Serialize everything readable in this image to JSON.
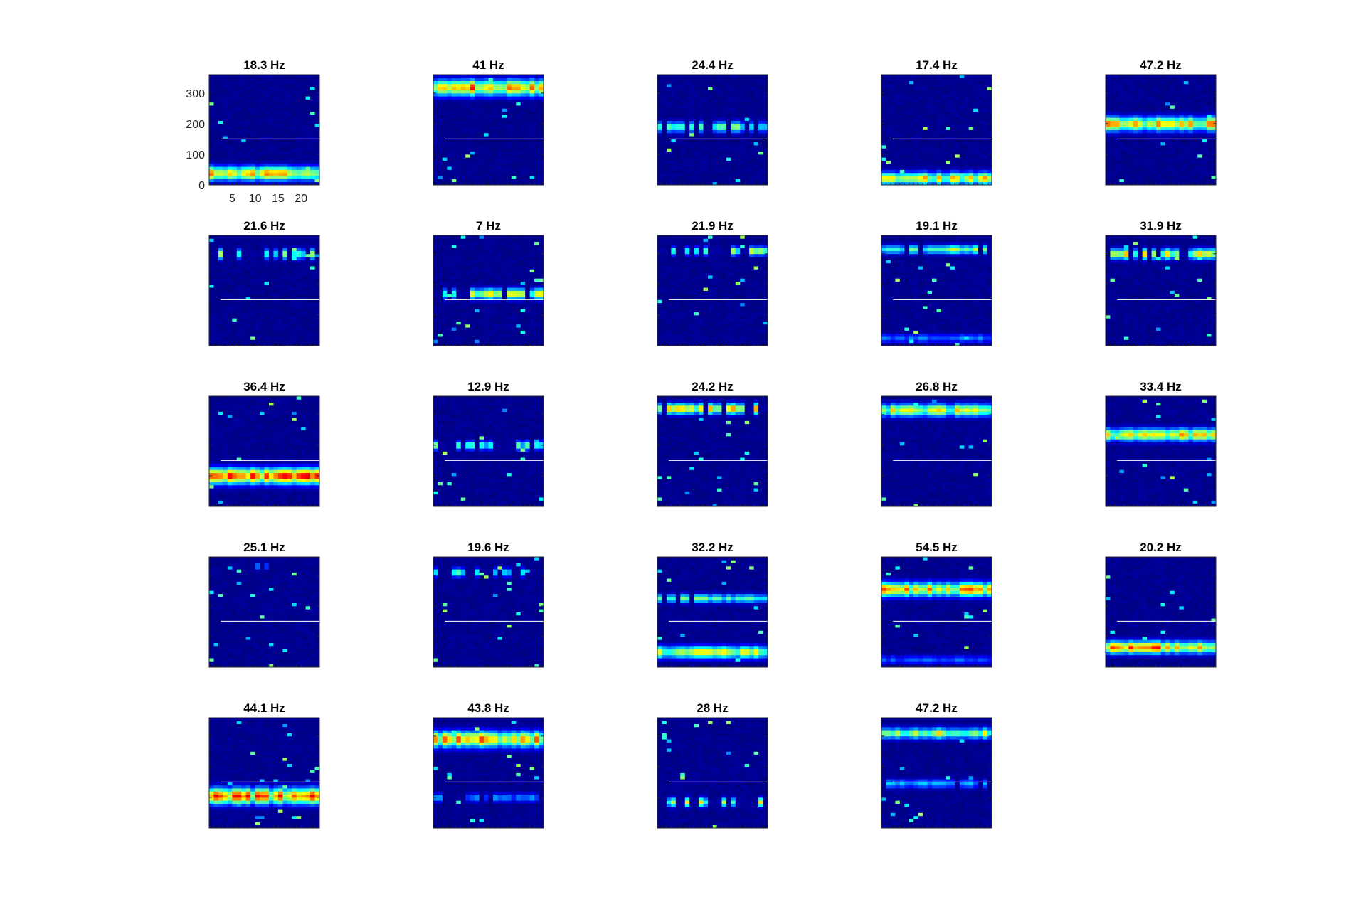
{
  "chart_data": {
    "type": "heatmap",
    "colormap": "jet",
    "layout": {
      "rows": 5,
      "cols": 5
    },
    "x_axis": {
      "range": [
        0,
        24
      ],
      "ticks": [
        5,
        10,
        15,
        20
      ],
      "tick_labels": [
        "5",
        "10",
        "15",
        "20"
      ]
    },
    "y_axis": {
      "range": [
        0,
        360
      ],
      "ticks": [
        0,
        100,
        200,
        300
      ],
      "tick_labels": [
        "0",
        "100",
        "200",
        "300"
      ]
    },
    "reference_line": {
      "y": 150,
      "color": "#ffffff"
    },
    "panels": [
      {
        "title": "18.3 Hz",
        "bands": [
          {
            "y": 38,
            "strength": 0.85,
            "coverage": 1.0,
            "thick": 1.6
          }
        ]
      },
      {
        "title": "41 Hz",
        "bands": [
          {
            "y": 318,
            "strength": 0.9,
            "coverage": 1.0,
            "thick": 1.8
          }
        ]
      },
      {
        "title": "24.4 Hz",
        "bands": [
          {
            "y": 190,
            "strength": 0.6,
            "coverage": 0.7,
            "thick": 1.2
          }
        ]
      },
      {
        "title": "17.4 Hz",
        "bands": [
          {
            "y": 22,
            "strength": 0.75,
            "coverage": 1.0,
            "thick": 1.4
          }
        ]
      },
      {
        "title": "47.2 Hz",
        "bands": [
          {
            "y": 200,
            "strength": 0.8,
            "coverage": 1.0,
            "thick": 1.6
          }
        ]
      },
      {
        "title": "21.6 Hz",
        "bands": [
          {
            "y": 300,
            "strength": 0.6,
            "coverage": 0.45,
            "thick": 1.2
          }
        ]
      },
      {
        "title": "7 Hz",
        "bands": [
          {
            "y": 170,
            "strength": 0.7,
            "coverage": 0.6,
            "thick": 1.2
          }
        ]
      },
      {
        "title": "21.9 Hz",
        "bands": [
          {
            "y": 310,
            "strength": 0.65,
            "coverage": 0.6,
            "thick": 1.0
          }
        ]
      },
      {
        "title": "19.1 Hz",
        "bands": [
          {
            "y": 315,
            "strength": 0.6,
            "coverage": 0.85,
            "thick": 1.0
          },
          {
            "y": 25,
            "strength": 0.3,
            "coverage": 1.0,
            "thick": 1.0
          }
        ]
      },
      {
        "title": "31.9 Hz",
        "bands": [
          {
            "y": 300,
            "strength": 0.75,
            "coverage": 0.85,
            "thick": 1.2
          }
        ]
      },
      {
        "title": "36.4 Hz",
        "bands": [
          {
            "y": 100,
            "strength": 0.95,
            "coverage": 1.0,
            "thick": 1.8
          }
        ]
      },
      {
        "title": "12.9 Hz",
        "bands": [
          {
            "y": 200,
            "strength": 0.55,
            "coverage": 0.55,
            "thick": 1.0
          }
        ]
      },
      {
        "title": "24.2 Hz",
        "bands": [
          {
            "y": 320,
            "strength": 0.8,
            "coverage": 0.8,
            "thick": 1.2
          }
        ]
      },
      {
        "title": "26.8 Hz",
        "bands": [
          {
            "y": 315,
            "strength": 0.7,
            "coverage": 1.0,
            "thick": 1.4
          }
        ]
      },
      {
        "title": "33.4 Hz",
        "bands": [
          {
            "y": 235,
            "strength": 0.75,
            "coverage": 1.0,
            "thick": 1.4
          }
        ]
      },
      {
        "title": "25.1 Hz",
        "bands": [
          {
            "y": 330,
            "strength": 0.3,
            "coverage": 0.2,
            "thick": 0.8
          }
        ]
      },
      {
        "title": "19.6 Hz",
        "bands": [
          {
            "y": 310,
            "strength": 0.55,
            "coverage": 0.5,
            "thick": 1.0
          }
        ]
      },
      {
        "title": "32.2 Hz",
        "bands": [
          {
            "y": 225,
            "strength": 0.55,
            "coverage": 0.9,
            "thick": 1.0
          },
          {
            "y": 50,
            "strength": 0.7,
            "coverage": 1.0,
            "thick": 1.4
          }
        ]
      },
      {
        "title": "54.5 Hz",
        "bands": [
          {
            "y": 255,
            "strength": 0.85,
            "coverage": 1.0,
            "thick": 1.6
          },
          {
            "y": 25,
            "strength": 0.25,
            "coverage": 1.0,
            "thick": 1.0
          }
        ]
      },
      {
        "title": "20.2 Hz",
        "bands": [
          {
            "y": 65,
            "strength": 0.9,
            "coverage": 1.0,
            "thick": 1.4
          }
        ]
      },
      {
        "title": "44.1 Hz",
        "bands": [
          {
            "y": 105,
            "strength": 0.9,
            "coverage": 1.0,
            "thick": 1.8
          }
        ]
      },
      {
        "title": "43.8 Hz",
        "bands": [
          {
            "y": 290,
            "strength": 0.85,
            "coverage": 1.0,
            "thick": 1.8
          },
          {
            "y": 100,
            "strength": 0.3,
            "coverage": 0.7,
            "thick": 1.0
          }
        ]
      },
      {
        "title": "28 Hz",
        "bands": [
          {
            "y": 85,
            "strength": 0.7,
            "coverage": 0.3,
            "thick": 1.0
          }
        ]
      },
      {
        "title": "47.2 Hz",
        "bands": [
          {
            "y": 310,
            "strength": 0.75,
            "coverage": 1.0,
            "thick": 1.2
          },
          {
            "y": 145,
            "strength": 0.35,
            "coverage": 0.75,
            "thick": 1.0
          }
        ]
      }
    ]
  }
}
